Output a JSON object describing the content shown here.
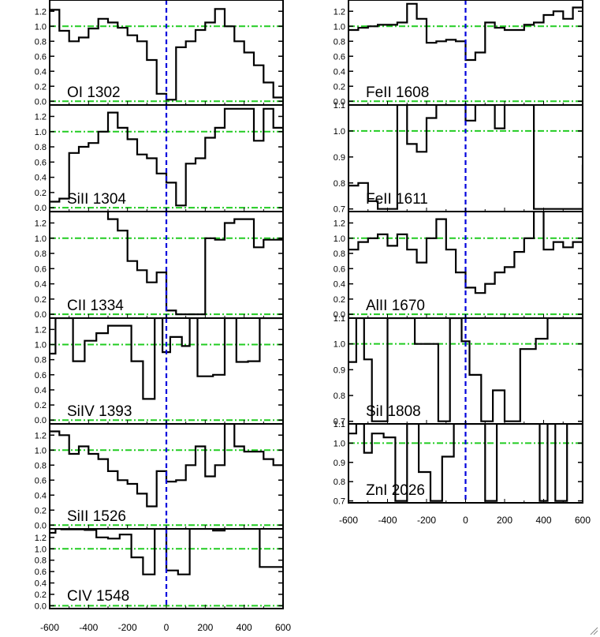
{
  "colors": {
    "frame": "#000000",
    "spectrum": "#000000",
    "continuum": "#22cc22",
    "zero_velocity": "#0000dd"
  },
  "icons": {
    "corner": "resize-grip-icon"
  },
  "chart_data": {
    "type": "line",
    "x_tick_labels": [
      "-600",
      "-400",
      "-200",
      "0",
      "200",
      "400",
      "600"
    ],
    "panels": [
      {
        "label": "OI 1302",
        "column": 0,
        "xlim": [
          -600,
          600
        ],
        "ylim": [
          -0.05,
          1.35
        ],
        "yticks": [
          0,
          0.2,
          0.4,
          0.6,
          0.8,
          1.0,
          1.2
        ],
        "ytick_labels": [
          "0.0",
          "0.2",
          "0.4",
          "0.6",
          "0.8",
          "1.0",
          "1.2"
        ],
        "continuum": [
          0,
          1
        ],
        "x": [
          -600,
          -550,
          -500,
          -450,
          -400,
          -350,
          -300,
          -250,
          -200,
          -150,
          -100,
          -50,
          0,
          50,
          100,
          150,
          200,
          250,
          300,
          350,
          400,
          450,
          500,
          550,
          600
        ],
        "y": [
          1.22,
          0.94,
          0.8,
          0.85,
          0.97,
          1.1,
          1.05,
          0.98,
          0.88,
          0.8,
          0.55,
          0.1,
          0.02,
          0.72,
          0.8,
          0.95,
          1.05,
          1.23,
          1.0,
          0.8,
          0.65,
          0.48,
          0.25,
          0.05,
          0.62
        ]
      },
      {
        "label": "SiII 1304",
        "column": 0,
        "xlim": [
          -600,
          600
        ],
        "ylim": [
          -0.05,
          1.35
        ],
        "yticks": [
          0,
          0.2,
          0.4,
          0.6,
          0.8,
          1.0,
          1.2
        ],
        "ytick_labels": [
          "0.0",
          "0.2",
          "0.4",
          "0.6",
          "0.8",
          "1.0",
          "1.2"
        ],
        "continuum": [
          0,
          1
        ],
        "x": [
          -600,
          -550,
          -500,
          -450,
          -400,
          -350,
          -300,
          -250,
          -200,
          -150,
          -100,
          -50,
          0,
          50,
          100,
          150,
          200,
          250,
          300,
          350,
          400,
          450,
          500,
          550,
          600
        ],
        "y": [
          0.08,
          0.12,
          0.72,
          0.8,
          0.85,
          1.0,
          1.25,
          1.05,
          0.9,
          0.7,
          0.65,
          0.45,
          0.33,
          0.03,
          0.58,
          0.65,
          0.92,
          1.05,
          1.3,
          1.3,
          1.3,
          0.88,
          1.3,
          1.05,
          1.05
        ]
      },
      {
        "label": "CII 1334",
        "column": 0,
        "xlim": [
          -600,
          600
        ],
        "ylim": [
          -0.05,
          1.35
        ],
        "yticks": [
          0,
          0.2,
          0.4,
          0.6,
          0.8,
          1.0,
          1.2
        ],
        "ytick_labels": [
          "0.0",
          "0.2",
          "0.4",
          "0.6",
          "0.8",
          "1.0",
          "1.2"
        ],
        "continuum": [
          0,
          1
        ],
        "x": [
          -600,
          -550,
          -500,
          -450,
          -400,
          -350,
          -300,
          -250,
          -200,
          -150,
          -100,
          -50,
          0,
          50,
          100,
          150,
          200,
          250,
          300,
          350,
          400,
          450,
          500,
          550,
          600
        ],
        "y": [
          1.35,
          1.35,
          1.35,
          1.35,
          1.35,
          1.35,
          1.25,
          1.1,
          0.7,
          0.58,
          0.42,
          0.55,
          0.05,
          0.0,
          0.0,
          0.0,
          1.0,
          0.98,
          1.2,
          1.25,
          1.25,
          0.88,
          0.98,
          0.98,
          0.98
        ]
      },
      {
        "label": "SiIV 1393",
        "column": 0,
        "xlim": [
          -600,
          600
        ],
        "ylim": [
          -0.05,
          1.35
        ],
        "yticks": [
          0,
          0.2,
          0.4,
          0.6,
          0.8,
          1.0,
          1.2
        ],
        "ytick_labels": [
          "0.0",
          "0.2",
          "0.4",
          "0.6",
          "0.8",
          "1.0",
          "1.2"
        ],
        "continuum": [
          0,
          1
        ],
        "x": [
          -600,
          -570,
          -540,
          -480,
          -420,
          -360,
          -300,
          -240,
          -180,
          -120,
          -60,
          -20,
          20,
          80,
          120,
          160,
          240,
          300,
          360,
          420,
          480,
          540,
          600
        ],
        "y": [
          0.88,
          1.35,
          1.35,
          0.78,
          1.05,
          1.15,
          1.25,
          1.25,
          0.78,
          0.28,
          1.35,
          0.9,
          1.1,
          0.98,
          1.35,
          0.58,
          0.6,
          1.35,
          0.77,
          0.78,
          1.35,
          1.35,
          1.35
        ]
      },
      {
        "label": "SiII 1526",
        "column": 0,
        "xlim": [
          -600,
          600
        ],
        "ylim": [
          -0.05,
          1.35
        ],
        "yticks": [
          0,
          0.2,
          0.4,
          0.6,
          0.8,
          1.0,
          1.2
        ],
        "ytick_labels": [
          "0.0",
          "0.2",
          "0.4",
          "0.6",
          "0.8",
          "1.0",
          "1.2"
        ],
        "continuum": [
          0,
          1
        ],
        "x": [
          -600,
          -550,
          -500,
          -450,
          -400,
          -350,
          -300,
          -250,
          -200,
          -150,
          -100,
          -50,
          0,
          50,
          100,
          150,
          200,
          250,
          300,
          350,
          400,
          450,
          500,
          550,
          600
        ],
        "y": [
          1.25,
          1.2,
          0.95,
          1.05,
          0.95,
          0.88,
          0.72,
          0.6,
          0.55,
          0.42,
          0.25,
          0.72,
          0.58,
          0.6,
          0.8,
          1.05,
          0.65,
          0.8,
          1.35,
          1.05,
          0.98,
          0.98,
          0.88,
          0.8,
          0.8
        ]
      },
      {
        "label": "CIV 1548",
        "column": 0,
        "xlim": [
          -600,
          600
        ],
        "ylim": [
          -0.05,
          1.35
        ],
        "yticks": [
          0,
          0.2,
          0.4,
          0.6,
          0.8,
          1.0,
          1.2
        ],
        "ytick_labels": [
          "0.0",
          "0.2",
          "0.4",
          "0.6",
          "0.8",
          "1.0",
          "1.2"
        ],
        "continuum": [
          0,
          1
        ],
        "x": [
          -600,
          -570,
          -540,
          -480,
          -420,
          -360,
          -300,
          -240,
          -180,
          -120,
          -60,
          0,
          60,
          120,
          180,
          240,
          300,
          360,
          420,
          480,
          540,
          600
        ],
        "y": [
          1.28,
          1.35,
          1.34,
          1.34,
          1.33,
          1.2,
          1.18,
          1.25,
          0.85,
          0.55,
          1.35,
          0.62,
          0.55,
          1.35,
          1.35,
          1.32,
          1.35,
          1.35,
          1.35,
          0.68,
          0.68,
          0.68
        ]
      },
      {
        "label": "FeII 1608",
        "column": 1,
        "xlim": [
          -600,
          600
        ],
        "ylim": [
          -0.05,
          1.35
        ],
        "yticks": [
          0,
          0.2,
          0.4,
          0.6,
          0.8,
          1.0,
          1.2
        ],
        "ytick_labels": [
          "0.0",
          "0.2",
          "0.4",
          "0.6",
          "0.8",
          "1.0",
          "1.2"
        ],
        "continuum": [
          0,
          1
        ],
        "x": [
          -600,
          -550,
          -500,
          -450,
          -400,
          -350,
          -300,
          -250,
          -200,
          -150,
          -100,
          -50,
          0,
          50,
          100,
          150,
          200,
          250,
          300,
          350,
          400,
          450,
          500,
          550,
          600
        ],
        "y": [
          0.95,
          0.98,
          1.0,
          1.02,
          1.02,
          1.05,
          1.3,
          1.1,
          0.78,
          0.8,
          0.82,
          0.8,
          0.55,
          0.65,
          1.05,
          0.98,
          0.95,
          0.95,
          1.02,
          1.05,
          1.15,
          1.2,
          1.1,
          1.25,
          1.25
        ]
      },
      {
        "label": "FeII 1611",
        "column": 1,
        "xlim": [
          -600,
          600
        ],
        "ylim": [
          0.69,
          1.1
        ],
        "yticks": [
          0.7,
          0.8,
          0.9,
          1.0,
          1.1
        ],
        "ytick_labels": [
          "0.7",
          "0.8",
          "0.9",
          "1.0",
          "1.1"
        ],
        "continuum": [
          1
        ],
        "x": [
          -600,
          -550,
          -500,
          -450,
          -400,
          -350,
          -300,
          -250,
          -200,
          -150,
          -100,
          -50,
          0,
          50,
          100,
          150,
          200,
          250,
          300,
          350,
          400,
          450,
          500,
          550,
          600
        ],
        "y": [
          0.79,
          0.8,
          0.73,
          0.7,
          0.7,
          1.1,
          0.95,
          0.92,
          1.05,
          1.1,
          1.1,
          1.1,
          1.04,
          1.1,
          1.1,
          1.01,
          1.1,
          1.1,
          1.1,
          0.7,
          0.7,
          0.7,
          0.7,
          0.7,
          0.87
        ]
      },
      {
        "label": "AlII 1670",
        "column": 1,
        "xlim": [
          -600,
          600
        ],
        "ylim": [
          -0.05,
          1.35
        ],
        "yticks": [
          0,
          0.2,
          0.4,
          0.6,
          0.8,
          1.0,
          1.2
        ],
        "ytick_labels": [
          "0.0",
          "0.2",
          "0.4",
          "0.6",
          "0.8",
          "1.0",
          "1.2"
        ],
        "continuum": [
          0,
          1
        ],
        "x": [
          -600,
          -550,
          -500,
          -450,
          -400,
          -350,
          -300,
          -250,
          -200,
          -150,
          -100,
          -50,
          0,
          50,
          100,
          150,
          200,
          250,
          300,
          350,
          400,
          450,
          500,
          550,
          600
        ],
        "y": [
          0.85,
          0.95,
          1.0,
          1.05,
          0.9,
          1.05,
          0.85,
          0.68,
          1.0,
          1.25,
          0.85,
          0.55,
          0.35,
          0.28,
          0.4,
          0.55,
          0.62,
          0.82,
          1.0,
          1.35,
          0.85,
          0.95,
          0.88,
          0.95,
          0.95
        ]
      },
      {
        "label": "SiI 1808",
        "column": 1,
        "xlim": [
          -600,
          600
        ],
        "ylim": [
          0.69,
          1.1
        ],
        "yticks": [
          0.7,
          0.8,
          0.9,
          1.0,
          1.1
        ],
        "ytick_labels": [
          "0.7",
          "0.8",
          "0.9",
          "1.0",
          "1.1"
        ],
        "continuum": [
          1
        ],
        "x": [
          -600,
          -560,
          -520,
          -480,
          -400,
          -320,
          -260,
          -200,
          -140,
          -80,
          -20,
          20,
          80,
          140,
          200,
          280,
          360,
          420,
          480,
          540,
          600
        ],
        "y": [
          0.93,
          1.1,
          0.94,
          0.7,
          1.1,
          1.1,
          1.0,
          1.0,
          0.7,
          1.1,
          1.01,
          0.88,
          0.7,
          0.82,
          0.7,
          0.98,
          1.02,
          1.1,
          1.1,
          1.1,
          0.87
        ]
      },
      {
        "label": "ZnI 2026",
        "column": 1,
        "xlim": [
          -600,
          600
        ],
        "ylim": [
          0.69,
          1.1
        ],
        "yticks": [
          0.7,
          0.8,
          0.9,
          1.0,
          1.1
        ],
        "ytick_labels": [
          "0.7",
          "0.8",
          "0.9",
          "1.0",
          "1.1"
        ],
        "continuum": [
          1
        ],
        "x": [
          -600,
          -560,
          -520,
          -480,
          -420,
          -360,
          -300,
          -240,
          -180,
          -120,
          -60,
          0,
          60,
          100,
          160,
          220,
          280,
          340,
          380,
          420,
          460,
          520,
          580,
          600
        ],
        "y": [
          1.05,
          1.1,
          0.95,
          1.05,
          1.03,
          0.7,
          1.1,
          0.85,
          0.7,
          0.93,
          1.1,
          1.1,
          1.1,
          0.7,
          1.1,
          1.1,
          1.1,
          1.1,
          0.7,
          1.1,
          0.7,
          1.1,
          1.1,
          0.7
        ]
      }
    ]
  }
}
